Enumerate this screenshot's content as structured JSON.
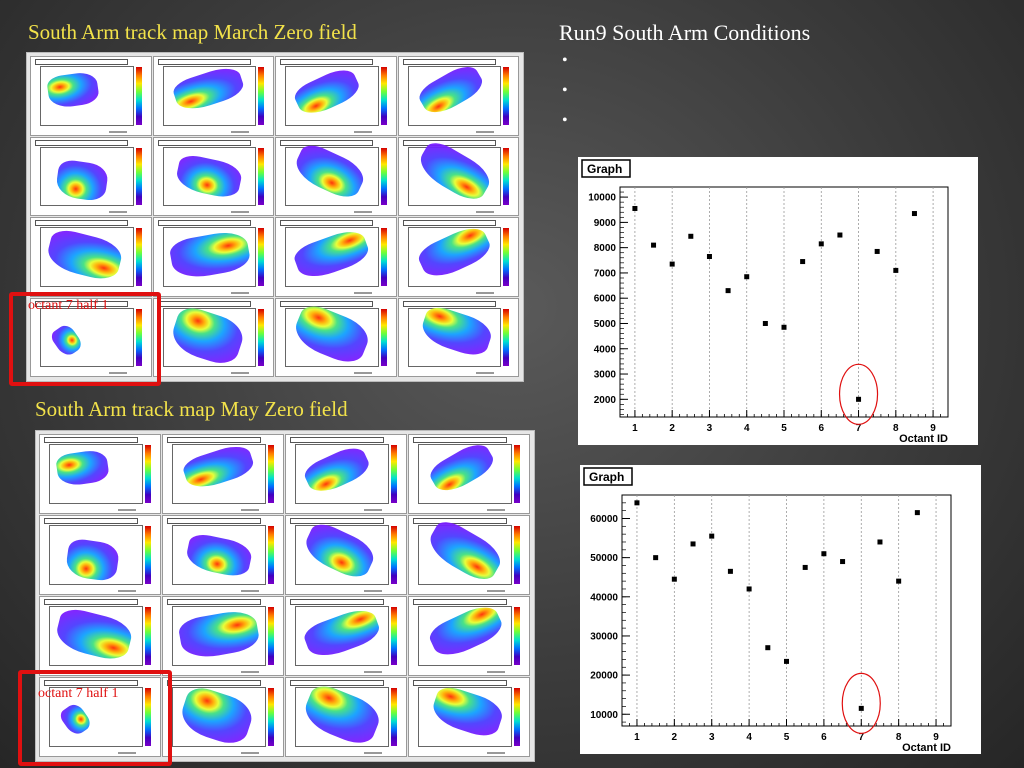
{
  "left": {
    "march_title": "South Arm track map March Zero field",
    "may_title": "South Arm track map May Zero field",
    "march_highlight": "octant 7 half 1",
    "may_highlight": "octant 7 half 1"
  },
  "right": {
    "title": "Run9 South Arm Conditions",
    "bullets": [
      "",
      "",
      ""
    ]
  },
  "chart_data": [
    {
      "type": "scatter",
      "title": "Graph",
      "xlabel": "Octant ID",
      "ylabel": "",
      "xlim": [
        0.6,
        9.4
      ],
      "ylim": [
        1300,
        10400
      ],
      "xticks": [
        1,
        2,
        3,
        4,
        5,
        6,
        7,
        8,
        9
      ],
      "yticks": [
        2000,
        3000,
        4000,
        5000,
        6000,
        7000,
        8000,
        9000,
        10000
      ],
      "grid": "vertical",
      "x": [
        1.0,
        1.5,
        2.0,
        2.5,
        3.0,
        3.5,
        4.0,
        4.5,
        5.0,
        5.5,
        6.0,
        6.5,
        7.0,
        7.5,
        8.0,
        8.5
      ],
      "y": [
        9550,
        8100,
        7350,
        8450,
        7650,
        6300,
        6850,
        5000,
        4850,
        7450,
        8150,
        8500,
        2000,
        7850,
        7100,
        9350
      ],
      "annotation": {
        "x": 7.0,
        "y": 2000,
        "shape": "circle",
        "color": "#e01010"
      }
    },
    {
      "type": "scatter",
      "title": "Graph",
      "xlabel": "Octant ID",
      "ylabel": "",
      "xlim": [
        0.6,
        9.4
      ],
      "ylim": [
        7000,
        66000
      ],
      "xticks": [
        1,
        2,
        3,
        4,
        5,
        6,
        7,
        8,
        9
      ],
      "yticks": [
        10000,
        20000,
        30000,
        40000,
        50000,
        60000
      ],
      "grid": "vertical",
      "x": [
        1.0,
        1.5,
        2.0,
        2.5,
        3.0,
        3.5,
        4.0,
        4.5,
        5.0,
        5.5,
        6.0,
        6.5,
        7.0,
        7.5,
        8.0,
        8.5
      ],
      "y": [
        64000,
        50000,
        44500,
        53500,
        55500,
        46500,
        42000,
        27000,
        23500,
        47500,
        51000,
        49000,
        11500,
        54000,
        44000,
        61500
      ],
      "annotation": {
        "x": 7.0,
        "y": 11500,
        "shape": "circle",
        "color": "#e01010"
      }
    }
  ]
}
